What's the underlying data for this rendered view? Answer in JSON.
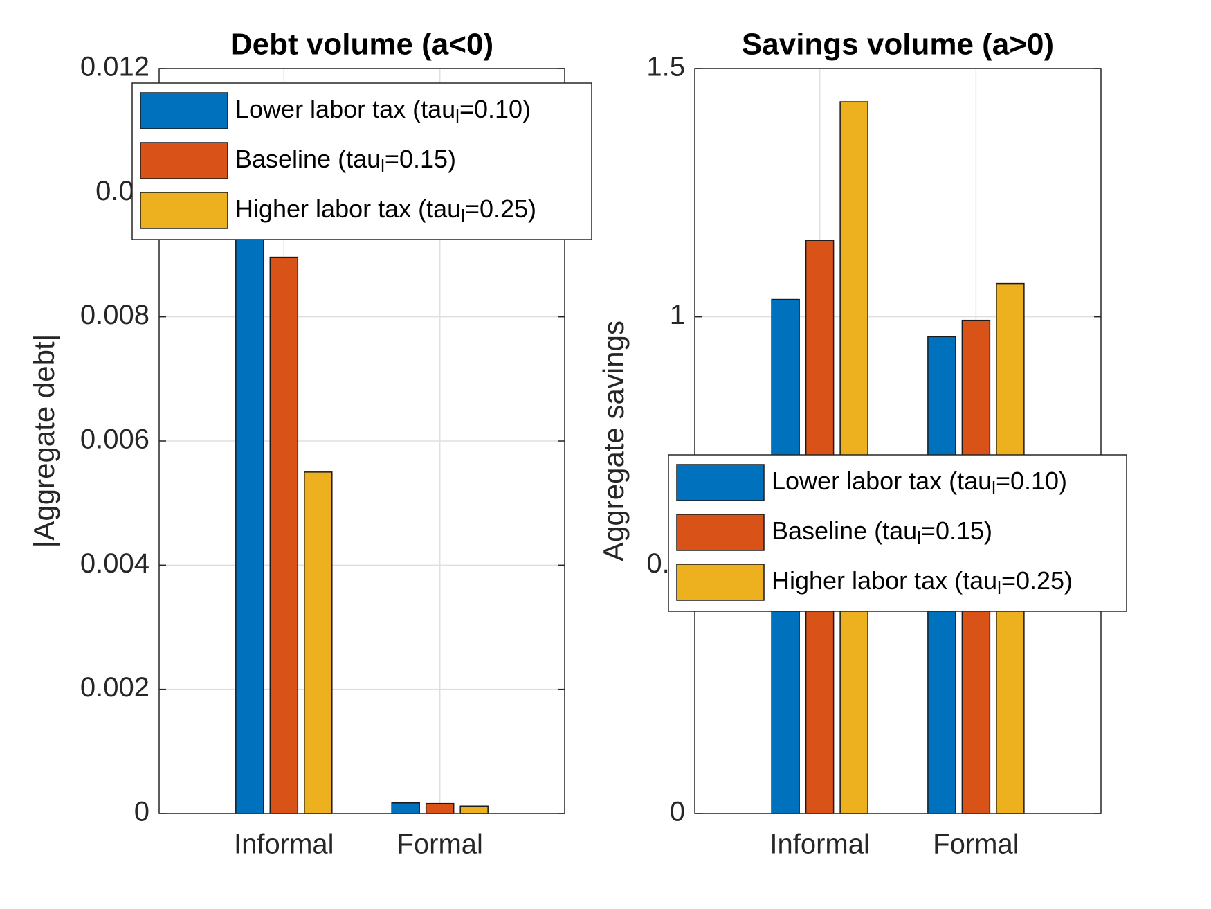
{
  "chart_data": [
    {
      "type": "bar",
      "title": "Debt volume (a<0)",
      "y_label": "|Aggregate debt|",
      "categories": [
        "Informal",
        "Formal"
      ],
      "series": [
        {
          "name": "Lower labor tax (tau_l=0.10)",
          "color": "#0072bd",
          "values": [
            0.01,
            0.00017
          ]
        },
        {
          "name": "Baseline (tau_l=0.15)",
          "color": "#d95319",
          "values": [
            0.00896,
            0.00016
          ]
        },
        {
          "name": "Higher labor tax (tau_l=0.25)",
          "color": "#edb120",
          "values": [
            0.0055,
            0.00012
          ]
        }
      ],
      "ylim": [
        0,
        0.012
      ],
      "yticks": [
        0,
        0.002,
        0.004,
        0.006,
        0.008,
        0.01,
        0.012
      ],
      "grid": true
    },
    {
      "type": "bar",
      "title": "Savings volume (a>0)",
      "y_label": "Aggregate savings",
      "categories": [
        "Informal",
        "Formal"
      ],
      "series": [
        {
          "name": "Lower labor tax (tau_l=0.10)",
          "color": "#0072bd",
          "values": [
            1.035,
            0.96
          ]
        },
        {
          "name": "Baseline (tau_l=0.15)",
          "color": "#d95319",
          "values": [
            1.154,
            0.993
          ]
        },
        {
          "name": "Higher labor tax (tau_l=0.25)",
          "color": "#edb120",
          "values": [
            1.433,
            1.067
          ]
        }
      ],
      "ylim": [
        0,
        1.5
      ],
      "yticks": [
        0,
        0.5,
        1,
        1.5
      ],
      "grid": true
    }
  ]
}
